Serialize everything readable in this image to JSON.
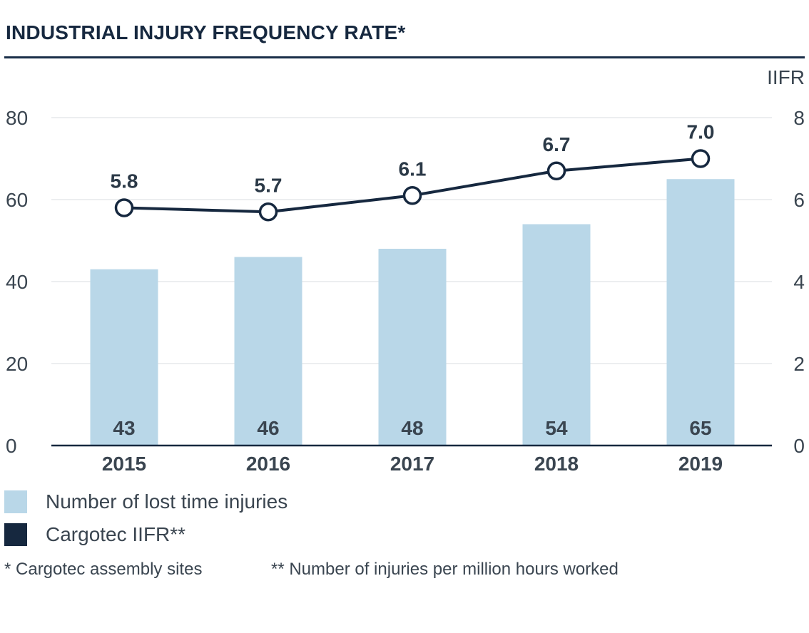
{
  "title": "INDUSTRIAL INJURY FREQUENCY RATE*",
  "colors": {
    "bar": "#b9d7e8",
    "line": "#16283f",
    "grid": "#e6e9ec",
    "text": "#3a4550"
  },
  "chart_data": {
    "type": "bar",
    "categories": [
      "2015",
      "2016",
      "2017",
      "2018",
      "2019"
    ],
    "series": [
      {
        "name": "Number of lost time injuries",
        "type": "bar",
        "axis": "left",
        "values": [
          43,
          46,
          48,
          54,
          65
        ]
      },
      {
        "name": "Cargotec IIFR**",
        "type": "line",
        "axis": "right",
        "values": [
          5.8,
          5.7,
          6.1,
          6.7,
          7.0
        ],
        "labels": [
          "5.8",
          "5.7",
          "6.1",
          "6.7",
          "7.0"
        ]
      }
    ],
    "y_left": {
      "ylim": [
        0,
        80
      ],
      "ticks": [
        "0",
        "20",
        "40",
        "60",
        "80"
      ]
    },
    "y_right": {
      "ylabel": "IIFR",
      "ylim": [
        0,
        8
      ],
      "ticks": [
        "0",
        "2",
        "4",
        "6",
        "8"
      ]
    },
    "grid": true,
    "legend_position": "bottom-left"
  },
  "legend": [
    {
      "label": "Number of lost time injuries",
      "color": "#b9d7e8"
    },
    {
      "label": "Cargotec IIFR**",
      "color": "#16283f"
    }
  ],
  "footnotes": [
    "* Cargotec assembly sites",
    "** Number of injuries per million hours worked"
  ]
}
